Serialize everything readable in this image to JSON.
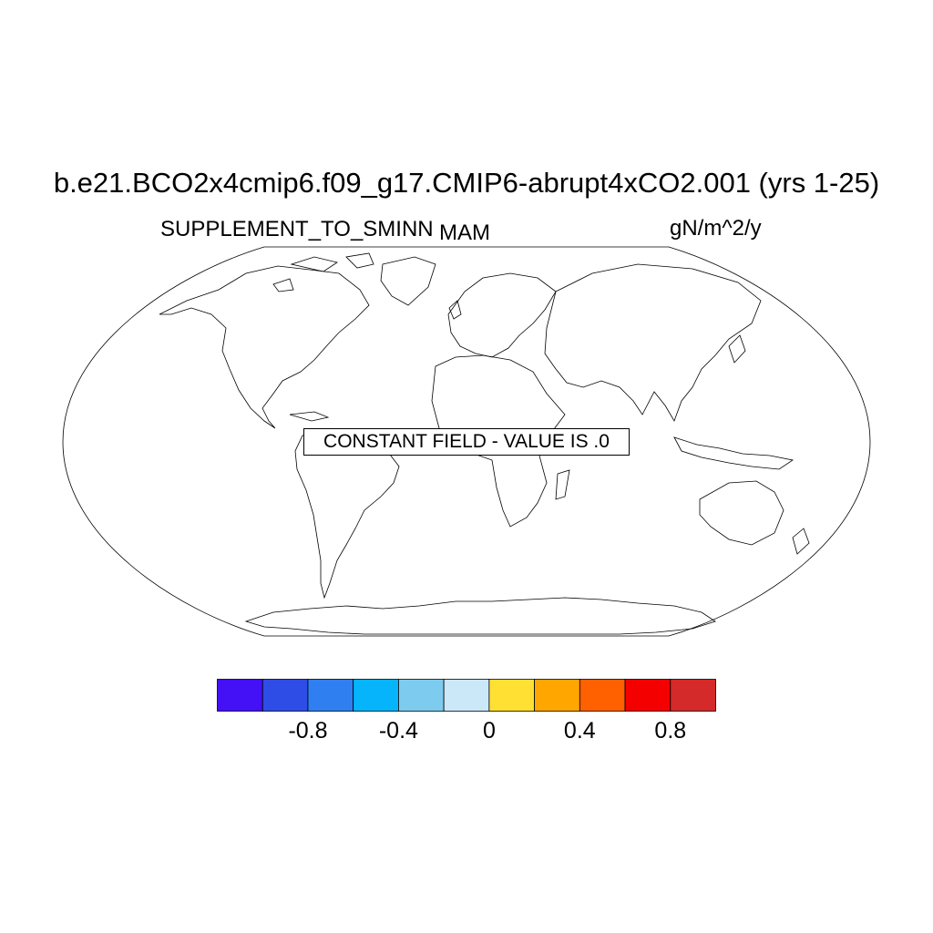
{
  "title": "b.e21.BCO2x4cmip6.f09_g17.CMIP6-abrupt4xCO2.001 (yrs 1-25)",
  "variable": "SUPPLEMENT_TO_SMINN",
  "season": "MAM",
  "units": "gN/m^2/y",
  "notice": "CONSTANT FIELD - VALUE IS .0",
  "map": {
    "projection": "robinson",
    "coastlines": true,
    "constant_value": 0.0
  },
  "colorbar": {
    "colors": [
      "#4410f5",
      "#2e4ce6",
      "#2f7ff0",
      "#05b4fa",
      "#7ecbf0",
      "#cbe8f8",
      "#ffe033",
      "#ffa600",
      "#ff6000",
      "#f50000",
      "#d42a2a"
    ],
    "tick_values": [
      -0.8,
      -0.4,
      0,
      0.4,
      0.8
    ],
    "tick_labels": [
      "-0.8",
      "-0.4",
      "0",
      "0.4",
      "0.8"
    ]
  }
}
